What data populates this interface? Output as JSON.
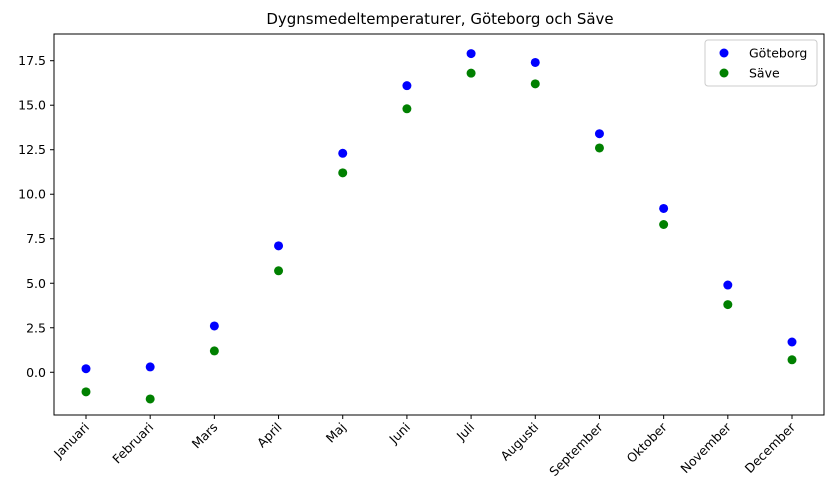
{
  "chart_data": {
    "type": "scatter",
    "title": "Dygnsmedeltemperaturer, Göteborg och Säve",
    "xlabel": "",
    "ylabel": "",
    "categories": [
      "Januari",
      "Februari",
      "Mars",
      "April",
      "Maj",
      "Juni",
      "Juli",
      "Augusti",
      "September",
      "Oktober",
      "November",
      "December"
    ],
    "ylim": [
      -2.4,
      19.0
    ],
    "yticks": [
      "0.0",
      "2.5",
      "5.0",
      "7.5",
      "10.0",
      "12.5",
      "15.0",
      "17.5"
    ],
    "legend_position": "top-right",
    "grid": false,
    "series": [
      {
        "name": "Göteborg",
        "color": "#0000ff",
        "values": [
          0.2,
          0.3,
          2.6,
          7.1,
          12.3,
          16.1,
          17.9,
          17.4,
          13.4,
          9.2,
          4.9,
          1.7
        ]
      },
      {
        "name": "Säve",
        "color": "#008000",
        "values": [
          -1.1,
          -1.5,
          1.2,
          5.7,
          11.2,
          14.8,
          16.8,
          16.2,
          12.6,
          8.3,
          3.8,
          0.7
        ]
      }
    ]
  }
}
